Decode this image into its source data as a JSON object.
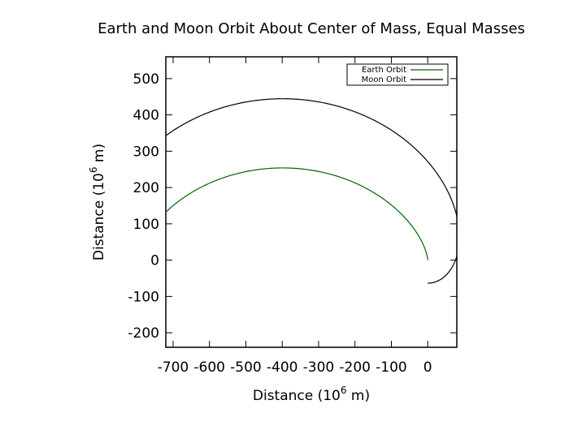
{
  "chart_data": {
    "type": "line",
    "title": "Earth and Moon Orbit About Center of Mass, Equal Masses",
    "xlabel": "Distance (10",
    "ylabel": "Distance (10",
    "label_exponent": "6",
    "label_suffix": " m)",
    "xlim": [
      -720,
      80
    ],
    "ylim": [
      -240,
      560
    ],
    "xticks": [
      -700,
      -600,
      -500,
      -400,
      -300,
      -200,
      -100,
      0
    ],
    "xtick_labels": [
      "-700",
      "-600",
      "-500",
      "-400",
      "-300",
      "-200",
      "-100",
      "0"
    ],
    "yticks": [
      -200,
      -100,
      0,
      100,
      200,
      300,
      400,
      500
    ],
    "ytick_labels": [
      "-200",
      "-100",
      "0",
      "100",
      "200",
      "300",
      "400",
      "500"
    ],
    "grid": false,
    "legend_position": "top-right",
    "series": [
      {
        "name": "Earth Orbit",
        "color": "#006400",
        "cycloid": {
          "R": 127,
          "x0": 0,
          "phase_start": 0,
          "phase_end": 5.9
        }
      },
      {
        "name": "Moon Orbit",
        "color": "#000000",
        "trochoid": {
          "R": 127,
          "d": 254,
          "x0": 0,
          "phase_start": 0,
          "phase_end": 5.9
        }
      }
    ]
  }
}
